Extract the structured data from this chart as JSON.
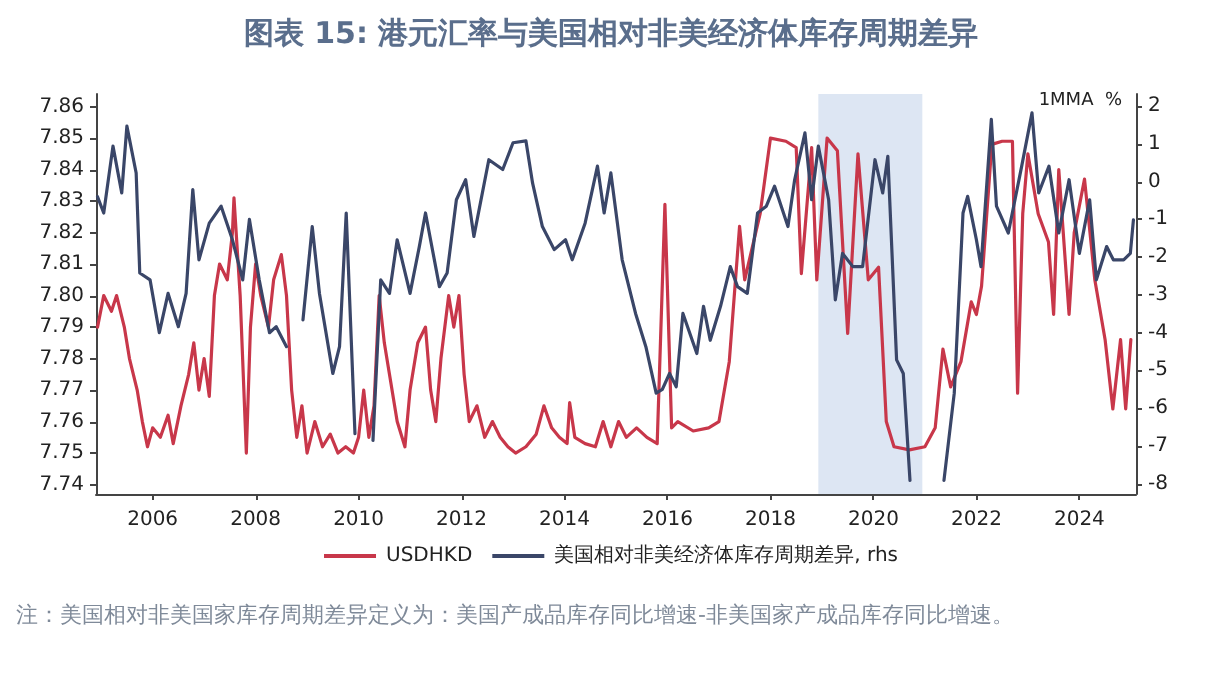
{
  "chart_data": {
    "type": "line",
    "title": "图表 15: 港元汇率与美国相对非美经济体库存周期差异",
    "y2label": "1MMA  %",
    "annotations": [
      "注：美国相对非美国家库存周期差异定义为：美国产成品库存同比增速-非美国家产成品库存同比增速。"
    ],
    "xlim": [
      2004.9,
      2025.1
    ],
    "xticks": [
      2006,
      2008,
      2010,
      2012,
      2014,
      2016,
      2018,
      2020,
      2022,
      2024
    ],
    "ylim": [
      7.737,
      7.864
    ],
    "yticks": [
      7.74,
      7.75,
      7.76,
      7.77,
      7.78,
      7.79,
      {
        "value": 7.8,
        "label": "7.80"
      },
      7.81,
      7.82,
      7.83,
      7.84,
      7.85,
      7.86
    ],
    "y2lim": [
      -8.27,
      2.32
    ],
    "y2ticks": [
      -8,
      -7,
      -6,
      -5,
      -4,
      -3,
      -2,
      -1,
      0,
      1,
      2
    ],
    "grid": false,
    "legend": "bottom",
    "marker": "none",
    "line_style": "solid",
    "bands": [
      {
        "axis": "x",
        "from": 2018.93,
        "to": 2020.95,
        "color": "#dde6f3"
      }
    ],
    "series": [
      {
        "name": "USDHKD",
        "color": "#c8374a",
        "x": [
          2004.93,
          2005.05,
          2005.2,
          2005.3,
          2005.45,
          2005.55,
          2005.7,
          2005.8,
          2005.9,
          2006.0,
          2006.15,
          2006.3,
          2006.4,
          2006.55,
          2006.7,
          2006.8,
          2006.9,
          2007.0,
          2007.1,
          2007.2,
          2007.3,
          2007.45,
          2007.55,
          2007.58,
          2007.7,
          2007.82,
          2007.9,
          2008.0,
          2008.1,
          2008.25,
          2008.35,
          2008.5,
          2008.6,
          2008.7,
          2008.8,
          2008.9,
          2009.0,
          2009.15,
          2009.3,
          2009.45,
          2009.6,
          2009.75,
          2009.9,
          2010.0,
          2010.1,
          2010.2,
          2010.3,
          2010.4,
          2010.5,
          2010.6,
          2010.75,
          2010.9,
          2011.0,
          2011.15,
          2011.3,
          2011.4,
          2011.5,
          2011.6,
          2011.75,
          2011.85,
          2011.95,
          2012.05,
          2012.15,
          2012.3,
          2012.45,
          2012.6,
          2012.75,
          2012.9,
          2013.05,
          2013.25,
          2013.45,
          2013.6,
          2013.75,
          2013.9,
          2014.05,
          2014.1,
          2014.2,
          2014.4,
          2014.6,
          2014.75,
          2014.9,
          2015.05,
          2015.2,
          2015.4,
          2015.6,
          2015.8,
          2015.95,
          2016.08,
          2016.2,
          2016.5,
          2016.8,
          2017.0,
          2017.2,
          2017.4,
          2017.5,
          2017.8,
          2018.0,
          2018.3,
          2018.5,
          2018.6,
          2018.8,
          2018.9,
          2019.1,
          2019.3,
          2019.5,
          2019.7,
          2019.9,
          2020.1,
          2020.25,
          2020.4,
          2020.7,
          2021.0,
          2021.2,
          2021.35,
          2021.5,
          2021.7,
          2021.9,
          2022.0,
          2022.1,
          2022.3,
          2022.5,
          2022.7,
          2022.8,
          2022.9,
          2023.0,
          2023.2,
          2023.4,
          2023.5,
          2023.6,
          2023.8,
          2023.9,
          2024.1,
          2024.3,
          2024.5,
          2024.65,
          2024.8,
          2024.9,
          2025.0
        ],
        "values": [
          7.79,
          7.8,
          7.795,
          7.8,
          7.79,
          7.78,
          7.77,
          7.76,
          7.752,
          7.758,
          7.755,
          7.762,
          7.753,
          7.765,
          7.775,
          7.785,
          7.77,
          7.78,
          7.768,
          7.8,
          7.81,
          7.805,
          7.82,
          7.831,
          7.8,
          7.75,
          7.79,
          7.81,
          7.8,
          7.79,
          7.805,
          7.813,
          7.8,
          7.77,
          7.755,
          7.765,
          7.75,
          7.76,
          7.752,
          7.756,
          7.75,
          7.752,
          7.75,
          7.755,
          7.77,
          7.755,
          7.765,
          7.8,
          7.785,
          7.775,
          7.76,
          7.752,
          7.77,
          7.785,
          7.79,
          7.77,
          7.76,
          7.78,
          7.8,
          7.79,
          7.8,
          7.775,
          7.76,
          7.765,
          7.755,
          7.76,
          7.755,
          7.752,
          7.75,
          7.752,
          7.756,
          7.765,
          7.758,
          7.755,
          7.753,
          7.766,
          7.755,
          7.753,
          7.752,
          7.76,
          7.752,
          7.76,
          7.755,
          7.758,
          7.755,
          7.753,
          7.829,
          7.758,
          7.76,
          7.757,
          7.758,
          7.76,
          7.779,
          7.822,
          7.805,
          7.826,
          7.85,
          7.849,
          7.847,
          7.807,
          7.847,
          7.805,
          7.85,
          7.846,
          7.788,
          7.845,
          7.805,
          7.809,
          7.76,
          7.752,
          7.751,
          7.752,
          7.758,
          7.783,
          7.771,
          7.779,
          7.798,
          7.794,
          7.803,
          7.848,
          7.849,
          7.849,
          7.769,
          7.826,
          7.845,
          7.826,
          7.817,
          7.794,
          7.84,
          7.794,
          7.82,
          7.837,
          7.805,
          7.786,
          7.764,
          7.786,
          7.764,
          7.786
        ]
      },
      {
        "name": "美国相对非美经济体库存周期差异, rhs",
        "color": "#3a4668",
        "axis": "y2",
        "x": [
          2004.93,
          2005.05,
          2005.23,
          2005.4,
          2005.5,
          2005.68,
          2005.75,
          2005.95,
          2006.13,
          2006.3,
          2006.5,
          2006.65,
          2006.78,
          2006.9,
          2007.1,
          2007.33,
          2007.55,
          2007.75,
          2007.88,
          2008.07,
          2008.27,
          2008.4,
          2008.6,
          2008.75,
          2008.92,
          2009.1,
          2009.24,
          2009.5,
          2009.63,
          2009.76,
          2009.93,
          2010.12,
          2010.28,
          2010.43,
          2010.6,
          2010.75,
          2011.0,
          2011.18,
          2011.3,
          2011.57,
          2011.72,
          2011.9,
          2012.08,
          2012.24,
          2012.53,
          2012.8,
          2013.0,
          2013.25,
          2013.38,
          2013.57,
          2013.8,
          2014.02,
          2014.15,
          2014.4,
          2014.64,
          2014.77,
          2014.9,
          2015.12,
          2015.38,
          2015.58,
          2015.78,
          2015.9,
          2016.04,
          2016.17,
          2016.3,
          2016.43,
          2016.57,
          2016.7,
          2016.83,
          2017.03,
          2017.22,
          2017.36,
          2017.55,
          2017.75,
          2017.92,
          2018.08,
          2018.34,
          2018.47,
          2018.67,
          2018.8,
          2018.93,
          2019.13,
          2019.26,
          2019.4,
          2019.6,
          2019.79,
          2020.03,
          2020.18,
          2020.28,
          2020.45,
          2020.58,
          2020.71,
          2021.0,
          2021.37,
          2021.57,
          2021.74,
          2021.83,
          2022.0,
          2022.09,
          2022.29,
          2022.39,
          2022.62,
          2022.88,
          2023.08,
          2023.21,
          2023.41,
          2023.6,
          2023.8,
          2024.0,
          2024.2,
          2024.33,
          2024.53,
          2024.66,
          2024.86,
          2024.99,
          2025.05
        ],
        "values": [
          -0.4,
          -0.83,
          0.94,
          -0.3,
          1.47,
          0.23,
          -2.42,
          -2.6,
          -4.0,
          -2.96,
          -3.84,
          -2.96,
          -0.21,
          -2.07,
          -1.1,
          -0.65,
          -1.54,
          -2.6,
          -1.0,
          -2.6,
          -4.0,
          -3.84,
          -4.37,
          null,
          -3.66,
          -1.19,
          -2.96,
          -5.08,
          -4.37,
          -0.83,
          -6.67,
          null,
          -6.85,
          -2.6,
          -2.96,
          -1.54,
          -2.96,
          -1.72,
          -0.83,
          -2.78,
          -2.42,
          -0.48,
          0.05,
          -1.45,
          0.58,
          0.32,
          1.03,
          1.08,
          -0.04,
          -1.19,
          -1.8,
          -1.54,
          -2.07,
          -1.1,
          0.41,
          -0.83,
          0.23,
          -2.07,
          -3.49,
          -4.37,
          -5.6,
          -5.5,
          -5.08,
          -5.43,
          -3.49,
          -4.0,
          -4.55,
          -3.3,
          -4.2,
          -3.3,
          -2.25,
          -2.78,
          -2.96,
          -0.83,
          -0.65,
          -0.12,
          -1.19,
          0.05,
          1.29,
          -0.48,
          0.94,
          -0.48,
          -3.13,
          -1.9,
          -2.25,
          -2.25,
          0.58,
          -0.3,
          0.67,
          -4.72,
          -5.08,
          -7.91,
          null,
          -7.91,
          -5.6,
          -0.83,
          -0.39,
          -1.54,
          -2.25,
          1.65,
          -0.65,
          -1.36,
          0.41,
          1.82,
          -0.3,
          0.41,
          -1.36,
          0.05,
          -1.9,
          -0.48,
          -2.6,
          -1.72,
          -2.07,
          -2.07,
          -1.9,
          -1.01
        ]
      }
    ]
  }
}
